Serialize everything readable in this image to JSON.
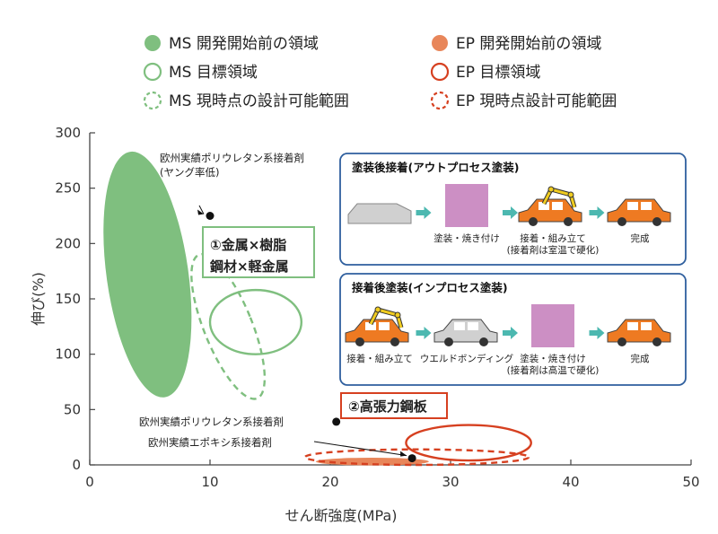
{
  "legend": [
    {
      "label": "MS 開発開始前の領域",
      "style": "filled",
      "color": "#7fbf7f"
    },
    {
      "label": "MS 目標領域",
      "style": "outline",
      "color": "#7fbf7f"
    },
    {
      "label": "MS 現時点の設計可能範囲",
      "style": "dashed",
      "color": "#7fbf7f"
    },
    {
      "label": "EP 開発開始前の領域",
      "style": "filled",
      "color": "#e8865a"
    },
    {
      "label": "EP 目標領域",
      "style": "outline",
      "color": "#d64020"
    },
    {
      "label": "EP 現時点設計可能範囲",
      "style": "dashed",
      "color": "#d64020"
    }
  ],
  "chart_data": {
    "type": "scatter",
    "xlabel": "せん断強度(MPa)",
    "ylabel": "伸び(%)",
    "xlim": [
      0,
      50
    ],
    "ylim": [
      0,
      300
    ],
    "xticks": [
      0,
      10,
      20,
      30,
      40,
      50
    ],
    "yticks": [
      0,
      50,
      100,
      150,
      200,
      250,
      300
    ],
    "grid": false,
    "regions": [
      {
        "series": "MS 開発開始前の領域",
        "cx": 4.8,
        "cy": 172,
        "rx": 3.4,
        "ry": 112,
        "angle": -8,
        "style": "filled"
      },
      {
        "series": "MS 目標領域",
        "cx": 13.8,
        "cy": 129,
        "rx": 3.8,
        "ry": 29,
        "angle": 0,
        "style": "outline"
      },
      {
        "series": "MS 現時点の設計可能範囲",
        "cx": 11.5,
        "cy": 125,
        "rx": 2.0,
        "ry": 70,
        "angle": -22,
        "style": "dashed"
      },
      {
        "series": "EP 開発開始前の領域",
        "cx": 23.5,
        "cy": 3,
        "rx": 4.7,
        "ry": 3.5,
        "angle": 0,
        "style": "filled"
      },
      {
        "series": "EP 目標領域",
        "cx": 31.5,
        "cy": 20,
        "rx": 5.2,
        "ry": 16,
        "angle": 0,
        "style": "outline"
      },
      {
        "series": "EP 現時点設計可能範囲",
        "cx": 27.2,
        "cy": 7,
        "rx": 9.3,
        "ry": 7,
        "angle": 0,
        "style": "dashed"
      }
    ],
    "points": [
      {
        "label": "欧州実績ポリウレタン系接着剤\n(ヤング率低)",
        "x": 10,
        "y": 225
      },
      {
        "label": "欧州実績ポリウレタン系接着剤",
        "x": 20.5,
        "y": 39
      },
      {
        "label": "欧州実績エポキシ系接着剤",
        "x": 26.8,
        "y": 6
      }
    ],
    "annotations": [
      {
        "text": "①金属×樹脂\n鋼材×軽金属",
        "style": "green-box"
      },
      {
        "text": "②高張力鋼板",
        "style": "red-box"
      }
    ]
  },
  "panels": [
    {
      "title": "塗装後接着(アウトプロセス塗装)",
      "steps": [
        {
          "icon": "body-shell-icon",
          "label": ""
        },
        {
          "icon": "paint-block-icon",
          "label": "塗装・焼き付け"
        },
        {
          "icon": "robot-car-icon",
          "label": "接着・組み立て\n(接着剤は室温で硬化)"
        },
        {
          "icon": "finished-car-icon",
          "label": "完成"
        }
      ]
    },
    {
      "title": "接着後塗装(インプロセス塗装)",
      "steps": [
        {
          "icon": "robot-car-icon",
          "label": "接着・組み立て"
        },
        {
          "icon": "gray-car-icon",
          "label": "ウエルドボンディング"
        },
        {
          "icon": "paint-block-icon",
          "label": "塗装・焼き付け\n(接着剤は高温で硬化)"
        },
        {
          "icon": "finished-car-icon",
          "label": "完成"
        }
      ]
    }
  ],
  "colors": {
    "panel_border": "#2f5f9e",
    "arrow": "#4cb8b0",
    "paint": "#cc8fc4",
    "car_orange": "#ee7a22",
    "car_gray": "#d0d0d0",
    "robot": "#f0cc20"
  }
}
